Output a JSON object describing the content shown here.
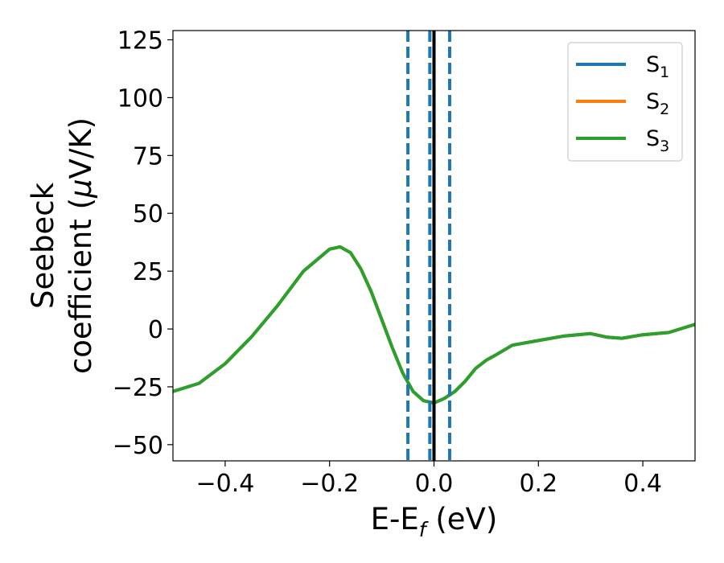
{
  "chart_data": {
    "type": "line",
    "title": "",
    "xlabel": "E-E",
    "xlabel_sub": "f",
    "xlabel_unit": " (eV)",
    "ylabel_line1": "Seebeck",
    "ylabel_line2": "coefficient  (",
    "ylabel_mu": "μ",
    "ylabel_unit": "V/K)",
    "xlim": [
      -0.5,
      0.5
    ],
    "ylim": [
      -57,
      129
    ],
    "xticks": [
      -0.4,
      -0.2,
      0.0,
      0.2,
      0.4
    ],
    "xtick_labels": [
      "−0.4",
      "−0.2",
      "0.0",
      "0.2",
      "0.4"
    ],
    "yticks": [
      -50,
      -25,
      0,
      25,
      50,
      75,
      100,
      125
    ],
    "ytick_labels": [
      "−50",
      "−25",
      "0",
      "25",
      "50",
      "75",
      "100",
      "125"
    ],
    "grid": false,
    "legend_position": "top-right",
    "x": [
      -0.5,
      -0.45,
      -0.4,
      -0.35,
      -0.3,
      -0.25,
      -0.2,
      -0.18,
      -0.16,
      -0.14,
      -0.12,
      -0.1,
      -0.08,
      -0.06,
      -0.04,
      -0.02,
      0.0,
      0.02,
      0.04,
      0.06,
      0.08,
      0.1,
      0.12,
      0.15,
      0.2,
      0.25,
      0.3,
      0.33,
      0.36,
      0.4,
      0.45,
      0.5
    ],
    "series": [
      {
        "name": "S",
        "sub": "1",
        "color": "#1f77b4",
        "values": [
          -27,
          -23.5,
          -15,
          -3.5,
          10,
          25,
          34.5,
          35.5,
          33,
          26,
          16,
          4,
          -8,
          -19,
          -27,
          -31,
          -32,
          -30,
          -27,
          -22.5,
          -17,
          -13.5,
          -11,
          -7,
          -5,
          -3,
          -2,
          -3.5,
          -4,
          -2.5,
          -1.5,
          2
        ]
      },
      {
        "name": "S",
        "sub": "2",
        "color": "#ff7f0e",
        "values": [
          -27,
          -23.5,
          -15,
          -3.5,
          10,
          25,
          34.5,
          35.5,
          33,
          26,
          16,
          4,
          -8,
          -19,
          -27,
          -31,
          -32,
          -30,
          -27,
          -22.5,
          -17,
          -13.5,
          -11,
          -7,
          -5,
          -3,
          -2,
          -3.5,
          -4,
          -2.5,
          -1.5,
          2
        ]
      },
      {
        "name": "S",
        "sub": "3",
        "color": "#2ca02c",
        "values": [
          -27,
          -23.5,
          -15,
          -3.5,
          10,
          25,
          34.5,
          35.5,
          33,
          26,
          16,
          4,
          -8,
          -19,
          -27,
          -31,
          -32,
          -30,
          -27,
          -22.5,
          -17,
          -13.5,
          -11,
          -7,
          -5,
          -3,
          -2,
          -3.5,
          -4,
          -2.5,
          -1.5,
          2
        ]
      }
    ],
    "vlines": [
      {
        "x": -0.05,
        "style": "dashed",
        "color": "#1f77b4"
      },
      {
        "x": -0.008,
        "style": "dashed",
        "color": "#1f77b4"
      },
      {
        "x": 0.03,
        "style": "dashed",
        "color": "#1f77b4"
      },
      {
        "x": 0.0,
        "style": "solid",
        "color": "#000000"
      }
    ]
  }
}
